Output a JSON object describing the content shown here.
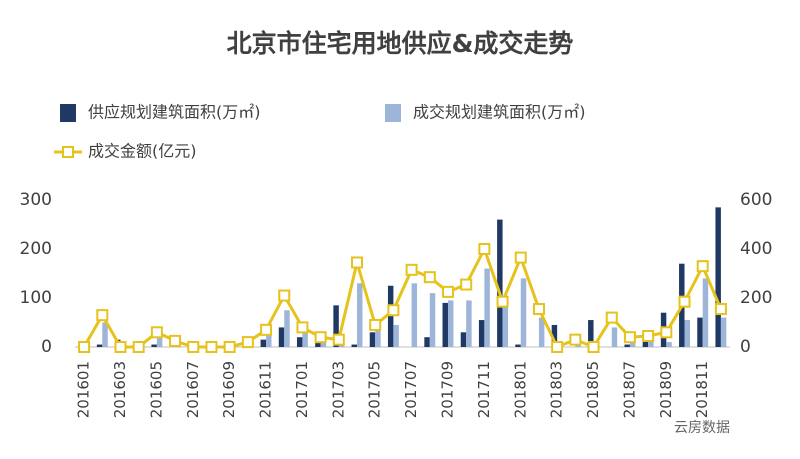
{
  "chart_data": {
    "type": "bar-line",
    "title": "北京市住宅用地供应&成交走势",
    "watermark": "云房数据",
    "categories": [
      "201601",
      null,
      "201603",
      null,
      "201605",
      null,
      "201607",
      null,
      "201609",
      null,
      "201611",
      null,
      "201701",
      null,
      "201703",
      null,
      "201705",
      null,
      "201707",
      null,
      "201709",
      null,
      "201711",
      null,
      "201801",
      null,
      "201803",
      null,
      "201805",
      null,
      "201807",
      null,
      "201809",
      null,
      "201811",
      null
    ],
    "series": [
      {
        "name": "供应规划建筑面积(万㎡)",
        "type": "bar",
        "color": "#1f3864",
        "values": [
          0,
          5,
          15,
          0,
          5,
          0,
          0,
          0,
          0,
          0,
          15,
          40,
          20,
          10,
          85,
          5,
          30,
          125,
          0,
          20,
          90,
          30,
          55,
          260,
          5,
          0,
          45,
          0,
          55,
          0,
          5,
          15,
          70,
          170,
          60,
          285
        ]
      },
      {
        "name": "成交规划建筑面积(万㎡)",
        "type": "bar",
        "color": "#9db5d8",
        "values": [
          0,
          50,
          5,
          0,
          20,
          5,
          0,
          0,
          0,
          5,
          30,
          75,
          30,
          15,
          20,
          130,
          40,
          45,
          130,
          110,
          95,
          95,
          160,
          95,
          140,
          60,
          0,
          5,
          0,
          40,
          10,
          15,
          10,
          55,
          140,
          60
        ]
      },
      {
        "name": "成交金额(亿元)",
        "type": "line",
        "axis": "y2",
        "color": "#e6c21c",
        "values": [
          0,
          130,
          0,
          0,
          60,
          25,
          0,
          0,
          0,
          20,
          70,
          210,
          80,
          40,
          30,
          345,
          90,
          150,
          315,
          285,
          225,
          255,
          400,
          185,
          365,
          155,
          0,
          30,
          0,
          120,
          40,
          45,
          60,
          185,
          330,
          155
        ]
      }
    ],
    "ylim": [
      0,
      300
    ],
    "yticks": [
      0,
      100,
      200,
      300
    ],
    "y2lim": [
      0,
      600
    ],
    "y2ticks": [
      0,
      200,
      400,
      600
    ]
  }
}
